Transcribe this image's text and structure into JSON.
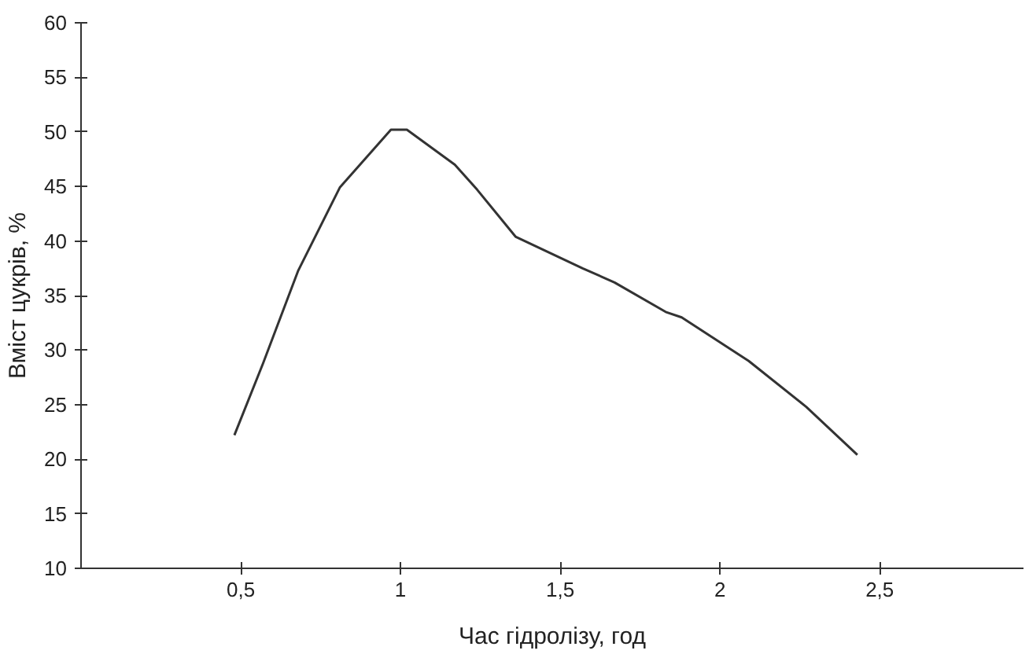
{
  "chart_data": {
    "type": "line",
    "xlabel": "Час гідролізу, год",
    "ylabel": "Вміст цукрів, %",
    "x": [
      0.48,
      0.57,
      0.68,
      0.81,
      0.97,
      1.02,
      1.17,
      1.24,
      1.36,
      1.57,
      1.67,
      1.83,
      1.88,
      2.09,
      2.27,
      2.43
    ],
    "series": [
      {
        "color": "#333333",
        "values": [
          22.2,
          28.8,
          37.3,
          44.9,
          50.2,
          50.2,
          47.0,
          44.7,
          40.4,
          37.5,
          36.2,
          33.5,
          33.0,
          29.0,
          24.8,
          20.4
        ]
      }
    ],
    "xlim": [
      0,
      2.95
    ],
    "ylim": [
      10,
      60
    ],
    "xticks": [
      {
        "value": 0.5,
        "label": "0,5"
      },
      1,
      {
        "value": 1.5,
        "label": "1,5"
      },
      2,
      {
        "value": 2.5,
        "label": "2,5"
      }
    ],
    "yticks": [
      10,
      15,
      20,
      25,
      30,
      35,
      40,
      45,
      50,
      55,
      60
    ],
    "grid": false,
    "marker": "none",
    "line_style": "solid"
  }
}
